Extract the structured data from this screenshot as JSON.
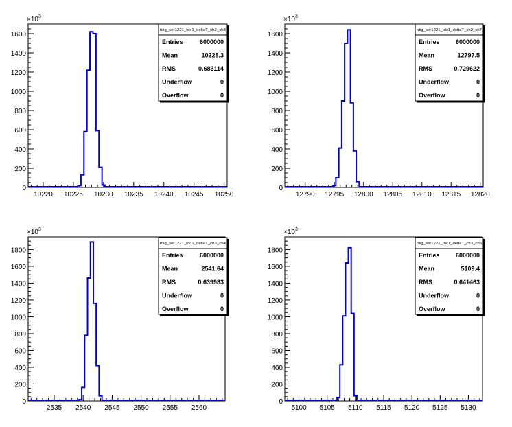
{
  "chart_data": [
    {
      "type": "histogram",
      "stats_title": "tdig_ser1221_tdc1_deltaT_ch2_ch8",
      "y_multiplier": "×10",
      "y_exponent": "3",
      "stats": [
        {
          "label": "Entries",
          "value": "6000000"
        },
        {
          "label": "Mean",
          "value": "10228.3"
        },
        {
          "label": "RMS",
          "value": "0.683114"
        },
        {
          "label": "Underflow",
          "value": "0"
        },
        {
          "label": "Overflow",
          "value": "0"
        }
      ],
      "xlim": [
        10217.5,
        10250.5
      ],
      "ylim": [
        0,
        1700
      ],
      "xticks": [
        "10220",
        "10225",
        "10230",
        "10235",
        "10240",
        "10245",
        "10250"
      ],
      "yticks": [
        "0",
        "200",
        "400",
        "600",
        "800",
        "1000",
        "1200",
        "1400",
        "1600"
      ],
      "bin_width": 0.5,
      "bins": [
        {
          "x": 10226.0,
          "y": 20
        },
        {
          "x": 10226.5,
          "y": 130
        },
        {
          "x": 10227.0,
          "y": 580
        },
        {
          "x": 10227.5,
          "y": 1220
        },
        {
          "x": 10228.0,
          "y": 1620
        },
        {
          "x": 10228.5,
          "y": 1600
        },
        {
          "x": 10229.0,
          "y": 590
        },
        {
          "x": 10229.5,
          "y": 210
        },
        {
          "x": 10230.0,
          "y": 25
        }
      ]
    },
    {
      "type": "histogram",
      "stats_title": "tdig_ser1221_tdc1_deltaT_ch2_ch7",
      "y_multiplier": "×10",
      "y_exponent": "3",
      "stats": [
        {
          "label": "Entries",
          "value": "6000000"
        },
        {
          "label": "Mean",
          "value": "12797.5"
        },
        {
          "label": "RMS",
          "value": "0.729622"
        },
        {
          "label": "Underflow",
          "value": "0"
        },
        {
          "label": "Overflow",
          "value": "0"
        }
      ],
      "xlim": [
        12786.5,
        12820.5
      ],
      "ylim": [
        0,
        1700
      ],
      "xticks": [
        "12790",
        "12795",
        "12800",
        "12805",
        "12810",
        "12815",
        "12820"
      ],
      "yticks": [
        "0",
        "200",
        "400",
        "600",
        "800",
        "1000",
        "1200",
        "1400",
        "1600"
      ],
      "bin_width": 0.5,
      "bins": [
        {
          "x": 12795.0,
          "y": 20
        },
        {
          "x": 12795.5,
          "y": 100
        },
        {
          "x": 12796.0,
          "y": 410
        },
        {
          "x": 12796.5,
          "y": 900
        },
        {
          "x": 12797.0,
          "y": 1500
        },
        {
          "x": 12797.5,
          "y": 1640
        },
        {
          "x": 12798.0,
          "y": 880
        },
        {
          "x": 12798.5,
          "y": 380
        },
        {
          "x": 12799.0,
          "y": 60
        }
      ]
    },
    {
      "type": "histogram",
      "stats_title": "tdig_ser1221_tdc1_deltaT_ch3_ch4",
      "y_multiplier": "×10",
      "y_exponent": "3",
      "stats": [
        {
          "label": "Entries",
          "value": "6000000"
        },
        {
          "label": "Mean",
          "value": "2541.64"
        },
        {
          "label": "RMS",
          "value": "0.639983"
        },
        {
          "label": "Underflow",
          "value": "0"
        },
        {
          "label": "Overflow",
          "value": "0"
        }
      ],
      "xlim": [
        2530.5,
        2564.5
      ],
      "ylim": [
        0,
        1950
      ],
      "xticks": [
        "2535",
        "2540",
        "2545",
        "2550",
        "2555",
        "2560"
      ],
      "yticks": [
        "0",
        "200",
        "400",
        "600",
        "800",
        "1000",
        "1200",
        "1400",
        "1600",
        "1800"
      ],
      "bin_width": 0.5,
      "bins": [
        {
          "x": 2539.5,
          "y": 15
        },
        {
          "x": 2540.0,
          "y": 160
        },
        {
          "x": 2540.5,
          "y": 780
        },
        {
          "x": 2541.0,
          "y": 1460
        },
        {
          "x": 2541.5,
          "y": 1890
        },
        {
          "x": 2542.0,
          "y": 1160
        },
        {
          "x": 2542.5,
          "y": 420
        },
        {
          "x": 2543.0,
          "y": 60
        }
      ]
    },
    {
      "type": "histogram",
      "stats_title": "tdig_ser1221_tdc1_deltaT_ch3_ch5",
      "y_multiplier": "×10",
      "y_exponent": "3",
      "stats": [
        {
          "label": "Entries",
          "value": "6000000"
        },
        {
          "label": "Mean",
          "value": "5109.4"
        },
        {
          "label": "RMS",
          "value": "0.641463"
        },
        {
          "label": "Underflow",
          "value": "0"
        },
        {
          "label": "Overflow",
          "value": "0"
        }
      ],
      "xlim": [
        5097.5,
        5132.5
      ],
      "ylim": [
        0,
        1950
      ],
      "xticks": [
        "5100",
        "5105",
        "5110",
        "5115",
        "5120",
        "5125",
        "5130"
      ],
      "yticks": [
        "0",
        "200",
        "400",
        "600",
        "800",
        "1000",
        "1200",
        "1400",
        "1600",
        "1800"
      ],
      "bin_width": 0.5,
      "bins": [
        {
          "x": 5107.0,
          "y": 40
        },
        {
          "x": 5107.5,
          "y": 430
        },
        {
          "x": 5108.0,
          "y": 1010
        },
        {
          "x": 5108.5,
          "y": 1640
        },
        {
          "x": 5109.0,
          "y": 1820
        },
        {
          "x": 5109.5,
          "y": 1040
        },
        {
          "x": 5110.0,
          "y": 60
        }
      ]
    }
  ],
  "colors": {
    "histogram_line": "#0000cc",
    "axis": "#000000",
    "background": "#ffffff"
  }
}
